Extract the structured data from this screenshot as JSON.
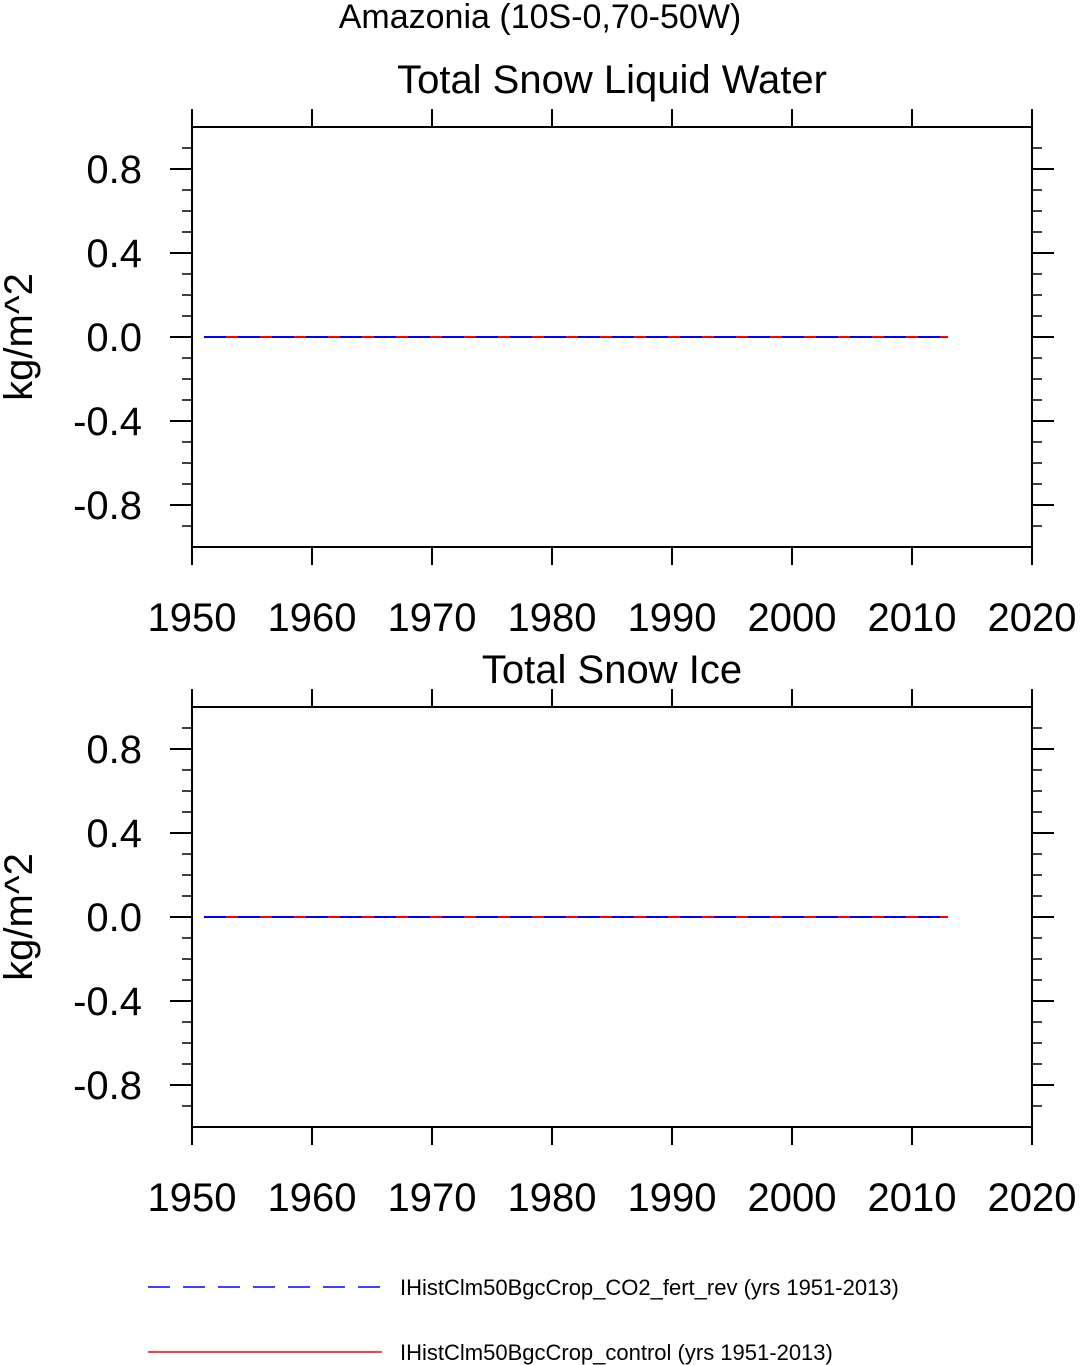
{
  "figure": {
    "main_title": "Amazonia (10S-0,70-50W)"
  },
  "chart_data": [
    {
      "type": "line",
      "title": "Total Snow Liquid Water",
      "xlabel": "",
      "ylabel": "kg/m^2",
      "xlim": [
        1950,
        2020
      ],
      "ylim": [
        -1.0,
        1.0
      ],
      "x_ticks": [
        1950,
        1960,
        1970,
        1980,
        1990,
        2000,
        2010,
        2020
      ],
      "x_tick_labels": [
        "1950",
        "1960",
        "1970",
        "1980",
        "1990",
        "2000",
        "2010",
        "2020"
      ],
      "y_ticks": [
        0.8,
        0.4,
        0.0,
        -0.4,
        -0.8
      ],
      "y_tick_labels": [
        "0.8",
        "0.4",
        "0.0",
        "-0.4",
        "-0.8"
      ],
      "grid": false,
      "series": [
        {
          "name": "IHistClm50BgcCrop_CO2_fert_rev (yrs 1951-2013)",
          "color": "#0000ff",
          "dash": "dashed",
          "x": [
            1951,
            2013
          ],
          "y": [
            0.0,
            0.0
          ]
        },
        {
          "name": "IHistClm50BgcCrop_control (yrs 1951-2013)",
          "color": "#ff0000",
          "dash": "solid",
          "x": [
            1951,
            2013
          ],
          "y": [
            0.0,
            0.0
          ]
        }
      ]
    },
    {
      "type": "line",
      "title": "Total Snow Ice",
      "xlabel": "",
      "ylabel": "kg/m^2",
      "xlim": [
        1950,
        2020
      ],
      "ylim": [
        -1.0,
        1.0
      ],
      "x_ticks": [
        1950,
        1960,
        1970,
        1980,
        1990,
        2000,
        2010,
        2020
      ],
      "x_tick_labels": [
        "1950",
        "1960",
        "1970",
        "1980",
        "1990",
        "2000",
        "2010",
        "2020"
      ],
      "y_ticks": [
        0.8,
        0.4,
        0.0,
        -0.4,
        -0.8
      ],
      "y_tick_labels": [
        "0.8",
        "0.4",
        "0.0",
        "-0.4",
        "-0.8"
      ],
      "grid": false,
      "series": [
        {
          "name": "IHistClm50BgcCrop_CO2_fert_rev (yrs 1951-2013)",
          "color": "#0000ff",
          "dash": "dashed",
          "x": [
            1951,
            2013
          ],
          "y": [
            0.0,
            0.0
          ]
        },
        {
          "name": "IHistClm50BgcCrop_control (yrs 1951-2013)",
          "color": "#ff0000",
          "dash": "solid",
          "x": [
            1951,
            2013
          ],
          "y": [
            0.0,
            0.0
          ]
        }
      ]
    }
  ],
  "legend": {
    "placement": "bottom",
    "items": [
      {
        "label": "IHistClm50BgcCrop_CO2_fert_rev (yrs 1951-2013)",
        "color": "#0000ff",
        "dash": "dashed"
      },
      {
        "label": "IHistClm50BgcCrop_control (yrs 1951-2013)",
        "color": "#ff0000",
        "dash": "solid"
      }
    ]
  }
}
